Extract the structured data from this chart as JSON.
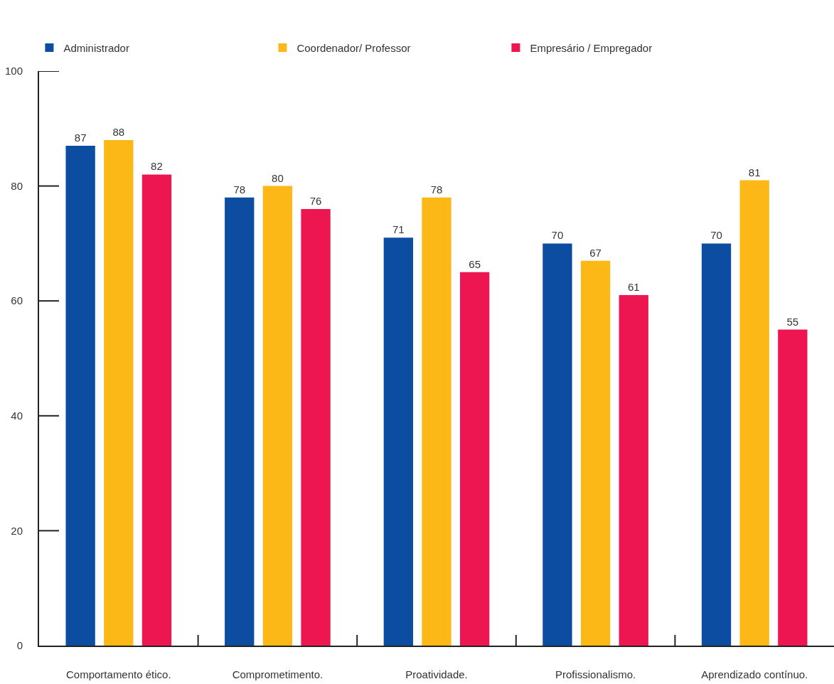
{
  "chart_data": {
    "type": "bar",
    "categories": [
      "Comportamento ético.",
      "Comprometimento.",
      "Proatividade.",
      "Profissionalismo.",
      "Aprendizado contínuo."
    ],
    "series": [
      {
        "name": "Administrador",
        "color": "#0c4da2",
        "values": [
          87,
          78,
          71,
          70,
          70
        ]
      },
      {
        "name": "Coordenador/ Professor",
        "color": "#fbb817",
        "values": [
          88,
          80,
          78,
          67,
          81
        ]
      },
      {
        "name": "Empresário / Empregador",
        "color": "#ee1651",
        "values": [
          82,
          76,
          65,
          61,
          55
        ]
      }
    ],
    "ylim": [
      0,
      100
    ],
    "yticks": [
      0,
      20,
      40,
      60,
      80,
      100
    ],
    "data_labels": true,
    "grid": false,
    "legend": "top left"
  }
}
